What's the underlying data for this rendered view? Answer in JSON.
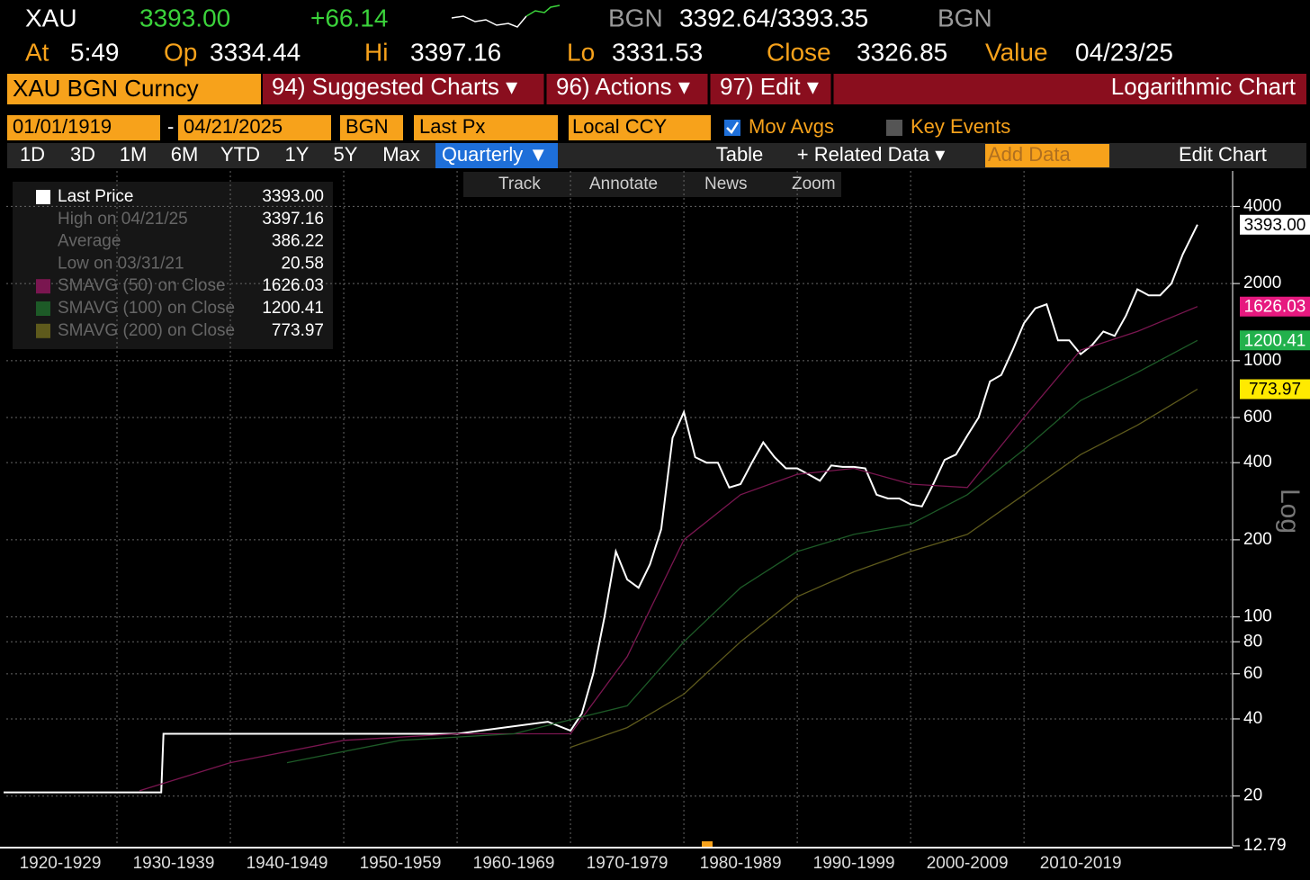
{
  "header": {
    "ticker": "XAU",
    "price": "3393.00",
    "change": "+66.14",
    "source": "BGN",
    "bid_ask": "3392.64/3393.35",
    "source2": "BGN",
    "time_label": "At",
    "time": "5:49",
    "open_label": "Op",
    "open": "3334.44",
    "high_label": "Hi",
    "high": "3397.16",
    "low_label": "Lo",
    "low": "3331.53",
    "close_label": "Close",
    "close": "3326.85",
    "value_label": "Value",
    "value_date": "04/23/25"
  },
  "menu": {
    "security": "XAU BGN Curncy",
    "suggested": "94) Suggested Charts ▾",
    "actions": "96) Actions ▾",
    "edit": "97) Edit ▾",
    "chart_kind": "Logarithmic Chart"
  },
  "settings": {
    "start": "01/01/1919",
    "dash": "-",
    "end": "04/21/2025",
    "source": "BGN",
    "field": "Last Px",
    "currency": "Local CCY",
    "mov_avgs": "Mov Avgs",
    "key_events": "Key Events"
  },
  "toolbar": {
    "periods": [
      "1D",
      "3D",
      "1M",
      "6M",
      "YTD",
      "1Y",
      "5Y",
      "Max"
    ],
    "frequency": "Quarterly ▼",
    "table": "Table",
    "related": "+ Related Data ▾",
    "add_data": "Add Data",
    "edit_chart": "Edit Chart"
  },
  "tools": [
    "Track",
    "Annotate",
    "News",
    "Zoom"
  ],
  "chart_data": {
    "type": "line",
    "log_scale": true,
    "grid": true,
    "scale_label": "Log",
    "xlim": [
      1920,
      2028.4
    ],
    "xticks": [
      {
        "value": 1920,
        "label": "1920-1929"
      },
      {
        "value": 1930,
        "label": "1930-1939"
      },
      {
        "value": 1940,
        "label": "1940-1949"
      },
      {
        "value": 1950,
        "label": "1950-1959"
      },
      {
        "value": 1960,
        "label": "1960-1969"
      },
      {
        "value": 1970,
        "label": "1970-1979"
      },
      {
        "value": 1980,
        "label": "1980-1989"
      },
      {
        "value": 1990,
        "label": "1990-1999"
      },
      {
        "value": 2000,
        "label": "2000-2009"
      },
      {
        "value": 2010,
        "label": "2010-2019"
      }
    ],
    "ylim": [
      12.79,
      5500
    ],
    "yticks": [
      12.79,
      20,
      40,
      60,
      80,
      100,
      200,
      400,
      600,
      1000,
      2000,
      4000
    ],
    "stats": [
      {
        "label": "High on 04/21/25",
        "value": "3397.16"
      },
      {
        "label": "Average",
        "value": "386.22"
      },
      {
        "label": "Low on 03/31/21",
        "value": "20.58"
      }
    ],
    "series": [
      {
        "name": "Last Price",
        "color": "#ffffff",
        "tag_color": "#ffffff",
        "last_label": "3393.00",
        "x": [
          1920,
          1925,
          1930,
          1933.9,
          1934.1,
          1940,
          1950,
          1960,
          1968,
          1970,
          1971,
          1972,
          1973,
          1974,
          1975,
          1976,
          1977,
          1978,
          1979,
          1980,
          1981,
          1982,
          1983,
          1984,
          1985,
          1986,
          1987,
          1988,
          1989,
          1990,
          1991,
          1992,
          1993,
          1994,
          1995,
          1996,
          1997,
          1998,
          1999,
          2000,
          2001,
          2002,
          2003,
          2004,
          2005,
          2006,
          2007,
          2008,
          2009,
          2010,
          2011,
          2012,
          2013,
          2014,
          2015,
          2016,
          2017,
          2018,
          2019,
          2020,
          2021,
          2022,
          2023,
          2024,
          2025.3
        ],
        "values": [
          20.67,
          20.67,
          20.67,
          20.67,
          35,
          35,
          35,
          35,
          39,
          36,
          42,
          60,
          100,
          180,
          140,
          130,
          160,
          220,
          500,
          630,
          420,
          400,
          400,
          320,
          330,
          400,
          480,
          420,
          380,
          380,
          360,
          340,
          390,
          385,
          385,
          380,
          300,
          290,
          290,
          275,
          270,
          330,
          410,
          430,
          510,
          600,
          830,
          880,
          1100,
          1400,
          1600,
          1660,
          1200,
          1200,
          1060,
          1150,
          1300,
          1250,
          1500,
          1900,
          1800,
          1800,
          2000,
          2600,
          3393
        ]
      },
      {
        "name": "SMAVG (50)  on Close",
        "color": "#7a1650",
        "tag_color": "#e6197f",
        "last_label": "1626.03",
        "x": [
          1932,
          1940,
          1950,
          1960,
          1970,
          1975,
          1980,
          1985,
          1990,
          1995,
          2000,
          2005,
          2010,
          2015,
          2020,
          2025.3
        ],
        "values": [
          21,
          27,
          33,
          35,
          35,
          70,
          200,
          300,
          360,
          380,
          330,
          320,
          600,
          1100,
          1300,
          1626.03
        ]
      },
      {
        "name": "SMAVG (100)  on Close",
        "color": "#1d5a27",
        "tag_color": "#22b14c",
        "last_label": "1200.41",
        "x": [
          1945,
          1955,
          1965,
          1975,
          1980,
          1985,
          1990,
          1995,
          2000,
          2005,
          2010,
          2015,
          2020,
          2025.3
        ],
        "values": [
          27,
          33,
          35,
          45,
          80,
          130,
          180,
          210,
          230,
          300,
          450,
          700,
          900,
          1200.41
        ]
      },
      {
        "name": "SMAVG (200)  on Close",
        "color": "#5e5a1c",
        "tag_color": "#ffea00",
        "last_label": "773.97",
        "x": [
          1970,
          1975,
          1980,
          1985,
          1990,
          1995,
          2000,
          2005,
          2010,
          2015,
          2020,
          2025.3
        ],
        "values": [
          31,
          37,
          50,
          80,
          120,
          150,
          180,
          210,
          300,
          430,
          560,
          773.97
        ]
      }
    ]
  }
}
